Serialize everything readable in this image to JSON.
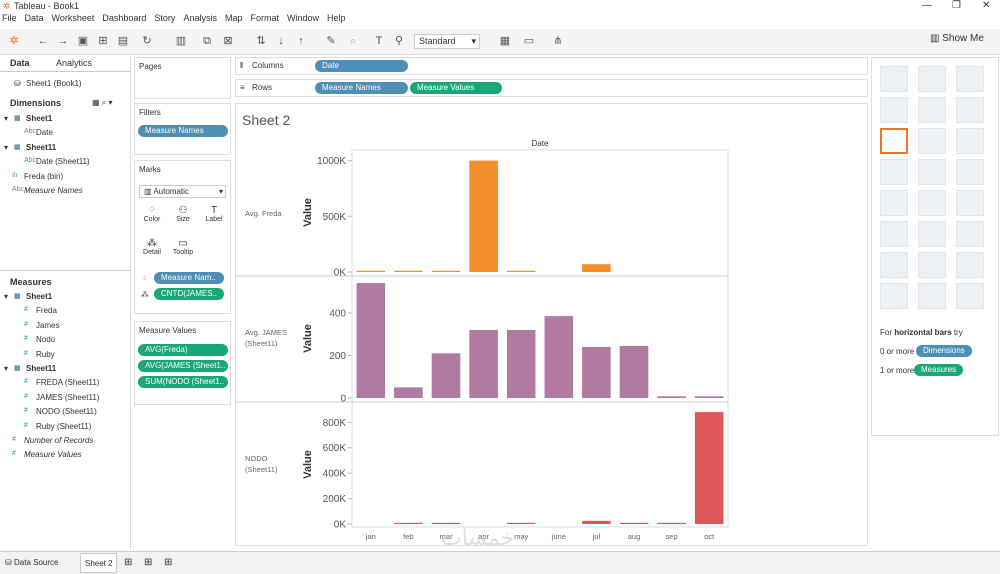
{
  "app": {
    "title": "Tableau - Book1"
  },
  "menu": [
    "File",
    "Data",
    "Worksheet",
    "Dashboard",
    "Story",
    "Analysis",
    "Map",
    "Format",
    "Window",
    "Help"
  ],
  "toolbar": {
    "fit_label": "Standard",
    "show_me_label": "Show Me"
  },
  "data_pane": {
    "tab_data": "Data",
    "tab_analytics": "Analytics",
    "source": "Sheet1 (Book1)",
    "dimensions_label": "Dimensions",
    "measures_label": "Measures",
    "dimensions": [
      {
        "label": "Sheet1",
        "type": "table"
      },
      {
        "label": "Date",
        "type": "abc"
      },
      {
        "label": "Sheet11",
        "type": "table"
      },
      {
        "label": "Date (Sheet11)",
        "type": "abc"
      },
      {
        "label": "Freda (bin)",
        "type": "bin"
      },
      {
        "label": "Measure Names",
        "type": "abc"
      }
    ],
    "measures": [
      {
        "label": "Sheet1",
        "type": "table"
      },
      {
        "label": "Freda",
        "type": "num"
      },
      {
        "label": "James",
        "type": "num"
      },
      {
        "label": "Nodo",
        "type": "num"
      },
      {
        "label": "Ruby",
        "type": "num"
      },
      {
        "label": "Sheet11",
        "type": "table"
      },
      {
        "label": "FREDA (Sheet11)",
        "type": "num"
      },
      {
        "label": "JAMES (Sheet11)",
        "type": "num"
      },
      {
        "label": "NODO (Sheet11)",
        "type": "num"
      },
      {
        "label": "Ruby (Sheet11)",
        "type": "num"
      },
      {
        "label": "Number of Records",
        "type": "num"
      },
      {
        "label": "Measure Values",
        "type": "num"
      }
    ]
  },
  "shelves": {
    "pages_label": "Pages",
    "filters_label": "Filters",
    "filter_pill": "Measure Names",
    "marks_label": "Marks",
    "mark_type": "Automatic",
    "mark_buttons": [
      "Color",
      "Size",
      "Label",
      "Detail",
      "Tooltip"
    ],
    "mark_pills": [
      "Measure Nam..",
      "CNTD(JAMES.."
    ],
    "measure_values_label": "Measure Values",
    "measure_values_pills": [
      "AVG(Freda)",
      "AVG(JAMES (Sheet1..",
      "SUM(NODO (Sheet1.."
    ],
    "columns_label": "Columns",
    "columns_pill": "Date",
    "rows_label": "Rows",
    "rows_pills": [
      "Measure Names",
      "Measure Values"
    ]
  },
  "sheet": {
    "title": "Sheet 2",
    "column_header": "Date",
    "value_label": "Value"
  },
  "chart_data": {
    "type": "bar",
    "categories": [
      "jan",
      "feb",
      "mar",
      "apr",
      "may",
      "june",
      "jul",
      "aug",
      "sep",
      "oct"
    ],
    "panes": [
      {
        "label": "Avg. Freda",
        "color": "#f28e2b",
        "ticks": [
          "1000K",
          "500K",
          "0K"
        ],
        "ylim": [
          0,
          1050000
        ],
        "values": [
          2000,
          5000,
          10000,
          1000000,
          5000,
          0,
          70000,
          0,
          0,
          0
        ]
      },
      {
        "label": "Avg. JAMES (Sheet11)",
        "color": "#b07aa1",
        "ticks": [
          "400",
          "200",
          "0"
        ],
        "ylim": [
          0,
          550
        ],
        "values": [
          540,
          50,
          210,
          320,
          320,
          385,
          240,
          245,
          8,
          8
        ]
      },
      {
        "label": "NODO (Sheet11)",
        "color": "#e15759",
        "ticks": [
          "800K",
          "600K",
          "400K",
          "200K",
          "0K"
        ],
        "ylim": [
          0,
          920000
        ],
        "values": [
          0,
          5000,
          5000,
          0,
          5000,
          0,
          25000,
          5000,
          5000,
          880000
        ]
      }
    ]
  },
  "show_me": {
    "hint_prefix": "For",
    "hint_bold": "horizontal bars",
    "hint_suffix": "try",
    "row1_label": "0 or more",
    "row1_pill": "Dimensions",
    "row2_label": "1 or more",
    "row2_pill": "Measures"
  },
  "status": {
    "data_source": "Data Source",
    "sheet_tab": "Sheet 2"
  },
  "watermark": "خمسات"
}
